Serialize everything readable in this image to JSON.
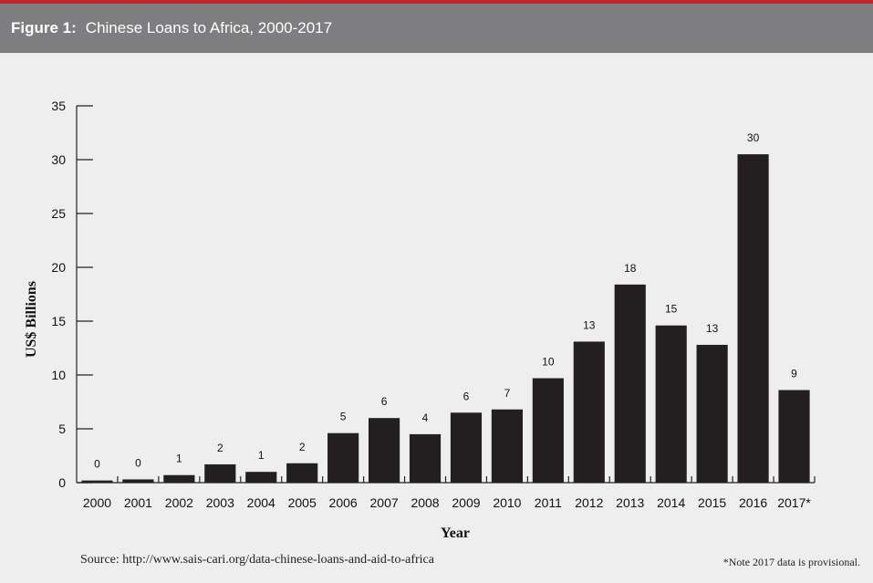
{
  "header": {
    "figure_label": "Figure 1:",
    "title": "Chinese Loans to Africa, 2000-2017"
  },
  "colors": {
    "accent_line": "#c0282f",
    "header_background": "#7e7e80",
    "page_background": "#eeeeef",
    "bars": "#231f20"
  },
  "chart_data": {
    "type": "bar",
    "categories": [
      "2000",
      "2001",
      "2002",
      "2003",
      "2004",
      "2005",
      "2006",
      "2007",
      "2008",
      "2009",
      "2010",
      "2011",
      "2012",
      "2013",
      "2014",
      "2015",
      "2016",
      "2017*"
    ],
    "values": [
      0.2,
      0.3,
      0.7,
      1.7,
      1.0,
      1.8,
      4.6,
      6.0,
      4.5,
      6.5,
      6.8,
      9.7,
      13.1,
      18.4,
      14.6,
      12.8,
      30.5,
      8.6
    ],
    "data_labels": [
      "0",
      "0",
      "1",
      "2",
      "1",
      "2",
      "5",
      "6",
      "4",
      "6",
      "7",
      "10",
      "13",
      "18",
      "15",
      "13",
      "30",
      "9"
    ],
    "xlabel": "Year",
    "ylabel": "US$ Billions",
    "ylim": [
      0,
      35
    ],
    "yticks": [
      0,
      5,
      10,
      15,
      20,
      25,
      30,
      35
    ],
    "grid": false,
    "legend": "none"
  },
  "footer": {
    "source": "Source: http://www.sais-cari.org/data-chinese-loans-and-aid-to-africa",
    "note": "*Note 2017 data is provisional."
  }
}
